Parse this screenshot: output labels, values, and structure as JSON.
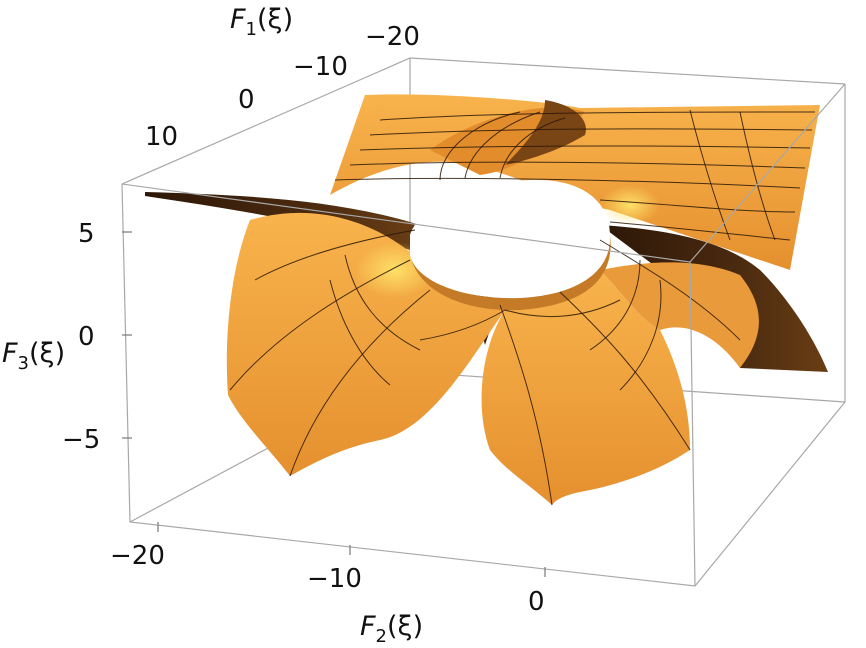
{
  "chart_data": {
    "type": "surface3d",
    "title": "",
    "axes": {
      "x": {
        "label_func": "F",
        "label_sub": "1",
        "label_arg": "(ξ)",
        "ticks": [
          "−20",
          "−10",
          "0",
          "10"
        ]
      },
      "y": {
        "label_func": "F",
        "label_sub": "2",
        "label_arg": "(ξ)",
        "ticks": [
          "−20",
          "−10",
          "0"
        ]
      },
      "z": {
        "label_func": "F",
        "label_sub": "3",
        "label_arg": "(ξ)",
        "ticks": [
          "5",
          "0",
          "−5"
        ]
      }
    },
    "box": "on",
    "mesh": "on",
    "colors": {
      "surface_light": "#f7b24a",
      "surface_mid": "#e79436",
      "surface_dark": "#3b210d",
      "highlight": "#ffe066"
    }
  }
}
